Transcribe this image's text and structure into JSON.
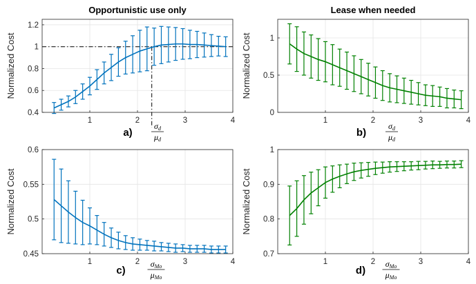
{
  "chart_data": [
    {
      "type": "line",
      "title": "Opportunistic use only",
      "panel_label": "a)",
      "ylabel": "Normalized Cost",
      "xlabel_num": "σ_d",
      "xlabel_den": "μ_d",
      "xlim": [
        0,
        4
      ],
      "ylim": [
        0.4,
        1.25
      ],
      "xticks": [
        "1",
        "2",
        "3",
        "4"
      ],
      "yticks": [
        "0.4",
        "0.6",
        "0.8",
        "1",
        "1.2"
      ],
      "color": "#0072bd",
      "reference_line_y": 1,
      "reference_line_x": 2.3,
      "x": [
        0.25,
        0.4,
        0.55,
        0.7,
        0.85,
        1.0,
        1.15,
        1.3,
        1.45,
        1.6,
        1.75,
        1.9,
        2.05,
        2.2,
        2.35,
        2.5,
        2.65,
        2.8,
        2.95,
        3.1,
        3.25,
        3.4,
        3.55,
        3.7,
        3.85
      ],
      "y": [
        0.44,
        0.47,
        0.5,
        0.54,
        0.59,
        0.64,
        0.7,
        0.76,
        0.81,
        0.86,
        0.9,
        0.93,
        0.96,
        0.98,
        1.0,
        1.015,
        1.02,
        1.025,
        1.025,
        1.02,
        1.02,
        1.015,
        1.01,
        1.005,
        1.0
      ],
      "err": [
        0.05,
        0.05,
        0.05,
        0.06,
        0.07,
        0.08,
        0.09,
        0.1,
        0.12,
        0.13,
        0.15,
        0.17,
        0.19,
        0.2,
        0.17,
        0.17,
        0.16,
        0.15,
        0.14,
        0.13,
        0.12,
        0.11,
        0.1,
        0.09,
        0.09
      ]
    },
    {
      "type": "line",
      "title": "Lease when needed",
      "panel_label": "b)",
      "ylabel": "Normalized Cost",
      "xlabel_num": "σ_d",
      "xlabel_den": "μ_d",
      "xlim": [
        0,
        4
      ],
      "ylim": [
        0,
        1.25
      ],
      "xticks": [
        "1",
        "2",
        "3",
        "4"
      ],
      "yticks": [
        "0",
        "0.5",
        "1"
      ],
      "color": "#008000",
      "x": [
        0.25,
        0.4,
        0.55,
        0.7,
        0.85,
        1.0,
        1.15,
        1.3,
        1.45,
        1.6,
        1.75,
        1.9,
        2.05,
        2.2,
        2.35,
        2.5,
        2.65,
        2.8,
        2.95,
        3.1,
        3.25,
        3.4,
        3.55,
        3.7,
        3.85
      ],
      "y": [
        0.92,
        0.85,
        0.79,
        0.75,
        0.71,
        0.68,
        0.64,
        0.6,
        0.56,
        0.52,
        0.48,
        0.44,
        0.4,
        0.36,
        0.33,
        0.31,
        0.29,
        0.27,
        0.25,
        0.23,
        0.22,
        0.21,
        0.19,
        0.18,
        0.17
      ],
      "err": [
        0.27,
        0.3,
        0.29,
        0.29,
        0.28,
        0.27,
        0.27,
        0.25,
        0.25,
        0.24,
        0.23,
        0.22,
        0.21,
        0.2,
        0.19,
        0.18,
        0.17,
        0.16,
        0.15,
        0.14,
        0.14,
        0.13,
        0.13,
        0.12,
        0.12
      ]
    },
    {
      "type": "line",
      "title": "",
      "panel_label": "c)",
      "ylabel": "Normalized Cost",
      "xlabel_num": "σ_Mo",
      "xlabel_den": "μ_Mo",
      "xlim": [
        0,
        4
      ],
      "ylim": [
        0.45,
        0.6
      ],
      "xticks": [
        "1",
        "2",
        "3",
        "4"
      ],
      "yticks": [
        "0.45",
        "0.5",
        "0.55",
        "0.6"
      ],
      "color": "#0072bd",
      "x": [
        0.25,
        0.4,
        0.55,
        0.7,
        0.85,
        1.0,
        1.15,
        1.3,
        1.45,
        1.6,
        1.75,
        1.9,
        2.05,
        2.2,
        2.35,
        2.5,
        2.65,
        2.8,
        2.95,
        3.1,
        3.25,
        3.4,
        3.55,
        3.7,
        3.85
      ],
      "y": [
        0.528,
        0.519,
        0.51,
        0.502,
        0.495,
        0.49,
        0.484,
        0.478,
        0.473,
        0.469,
        0.466,
        0.464,
        0.463,
        0.462,
        0.461,
        0.46,
        0.459,
        0.458,
        0.458,
        0.457,
        0.457,
        0.457,
        0.456,
        0.456,
        0.456
      ],
      "err": [
        0.058,
        0.053,
        0.045,
        0.038,
        0.032,
        0.026,
        0.021,
        0.017,
        0.014,
        0.012,
        0.01,
        0.009,
        0.008,
        0.007,
        0.007,
        0.006,
        0.006,
        0.006,
        0.005,
        0.005,
        0.005,
        0.005,
        0.005,
        0.005,
        0.005
      ]
    },
    {
      "type": "line",
      "title": "",
      "panel_label": "d)",
      "ylabel": "Normalized Cost",
      "xlabel_num": "σ_Mo",
      "xlabel_den": "μ_Mo",
      "xlim": [
        0,
        4
      ],
      "ylim": [
        0.7,
        1.0
      ],
      "xticks": [
        "1",
        "2",
        "3",
        "4"
      ],
      "yticks": [
        "0.7",
        "0.8",
        "0.9",
        "1"
      ],
      "color": "#008000",
      "x": [
        0.25,
        0.4,
        0.55,
        0.7,
        0.85,
        1.0,
        1.15,
        1.3,
        1.45,
        1.6,
        1.75,
        1.9,
        2.05,
        2.2,
        2.35,
        2.5,
        2.65,
        2.8,
        2.95,
        3.1,
        3.25,
        3.4,
        3.55,
        3.7,
        3.85
      ],
      "y": [
        0.81,
        0.83,
        0.855,
        0.875,
        0.89,
        0.905,
        0.915,
        0.923,
        0.93,
        0.936,
        0.94,
        0.943,
        0.946,
        0.948,
        0.95,
        0.951,
        0.952,
        0.953,
        0.954,
        0.955,
        0.956,
        0.956,
        0.957,
        0.957,
        0.958
      ],
      "err": [
        0.085,
        0.08,
        0.07,
        0.06,
        0.052,
        0.045,
        0.038,
        0.033,
        0.028,
        0.025,
        0.022,
        0.02,
        0.018,
        0.016,
        0.015,
        0.014,
        0.013,
        0.012,
        0.012,
        0.011,
        0.011,
        0.01,
        0.01,
        0.01,
        0.01
      ]
    }
  ]
}
